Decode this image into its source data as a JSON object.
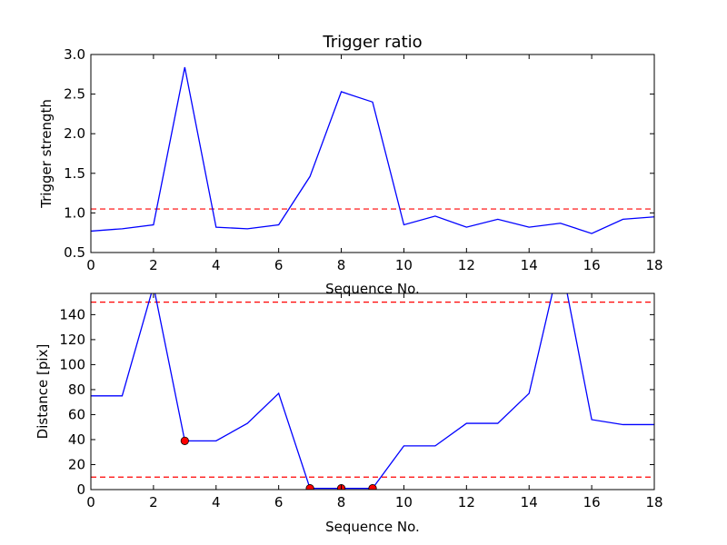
{
  "chart_data": [
    {
      "type": "line",
      "title": "Trigger ratio",
      "xlabel": "Sequence No.",
      "ylabel": "Trigger strength",
      "xlim": [
        0,
        18
      ],
      "ylim": [
        0.5,
        3.0
      ],
      "xticks": [
        "0",
        "2",
        "4",
        "6",
        "8",
        "10",
        "12",
        "14",
        "16",
        "18"
      ],
      "yticks": [
        "0.5",
        "1.0",
        "1.5",
        "2.0",
        "2.5",
        "3.0"
      ],
      "grid": false,
      "series": [
        {
          "color": "#0000ff",
          "x": [
            0,
            1,
            2,
            3,
            4,
            5,
            6,
            7,
            8,
            9,
            10,
            11,
            12,
            13,
            14,
            15,
            16,
            17,
            18
          ],
          "y": [
            0.77,
            0.8,
            0.85,
            2.84,
            0.82,
            0.8,
            0.85,
            1.46,
            2.53,
            2.4,
            0.85,
            0.96,
            0.82,
            0.92,
            0.82,
            0.87,
            0.74,
            0.92,
            0.95
          ]
        }
      ],
      "hlines": [
        {
          "y": 1.05,
          "color": "#ff0000",
          "style": "dashed"
        }
      ]
    },
    {
      "type": "line",
      "title": "",
      "xlabel": "Sequence No.",
      "ylabel": "Distance [pix]",
      "xlim": [
        0,
        18
      ],
      "ylim": [
        0,
        157
      ],
      "xticks": [
        "0",
        "2",
        "4",
        "6",
        "8",
        "10",
        "12",
        "14",
        "16",
        "18"
      ],
      "yticks": [
        "0",
        "20",
        "40",
        "60",
        "80",
        "100",
        "120",
        "140"
      ],
      "grid": false,
      "series": [
        {
          "color": "#0000ff",
          "x": [
            0,
            1,
            2,
            3,
            4,
            5,
            6,
            7,
            8,
            9,
            10,
            11,
            12,
            13,
            14,
            15,
            16,
            17,
            18
          ],
          "y": [
            75,
            75,
            163,
            39,
            39,
            53,
            77,
            1,
            1,
            1,
            35,
            35,
            53,
            53,
            77,
            185,
            56,
            52,
            52
          ]
        }
      ],
      "markers": {
        "color": "#ff0000",
        "x": [
          3,
          7,
          8,
          9
        ],
        "y": [
          39,
          1,
          1,
          1
        ]
      },
      "hlines": [
        {
          "y": 150,
          "color": "#ff0000",
          "style": "dashed"
        },
        {
          "y": 10,
          "color": "#ff0000",
          "style": "dashed"
        }
      ]
    }
  ]
}
